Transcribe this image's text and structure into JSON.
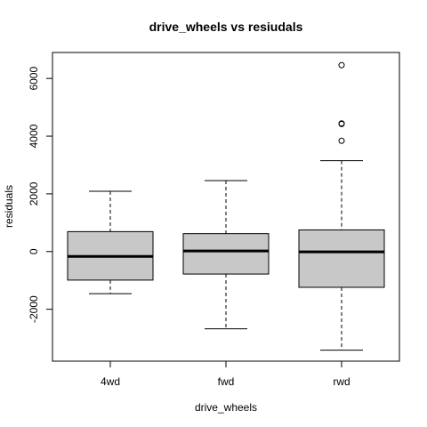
{
  "chart_data": {
    "type": "boxplot",
    "title": "drive_wheels  vs resiudals",
    "xlabel": "drive_wheels",
    "ylabel": "residuals",
    "ylim": [
      -3800,
      6900
    ],
    "yticks": [
      -2000,
      0,
      2000,
      4000,
      6000
    ],
    "ytick_labels": [
      "-2000",
      "0",
      "2000",
      "4000",
      "6000"
    ],
    "box_fill": "#c8c8c8",
    "categories": [
      "4wd",
      "fwd",
      "rwd"
    ],
    "boxes": [
      {
        "category": "4wd",
        "whisker_low": -1460,
        "q1": -990,
        "median": -170,
        "q3": 690,
        "whisker_high": 2090,
        "outliers": []
      },
      {
        "category": "fwd",
        "whisker_low": -2680,
        "q1": -780,
        "median": 20,
        "q3": 620,
        "whisker_high": 2460,
        "outliers": []
      },
      {
        "category": "rwd",
        "whisker_low": -3420,
        "q1": -1240,
        "median": -10,
        "q3": 750,
        "whisker_high": 3150,
        "outliers": [
          3840,
          4420,
          4440,
          6460
        ]
      }
    ]
  }
}
